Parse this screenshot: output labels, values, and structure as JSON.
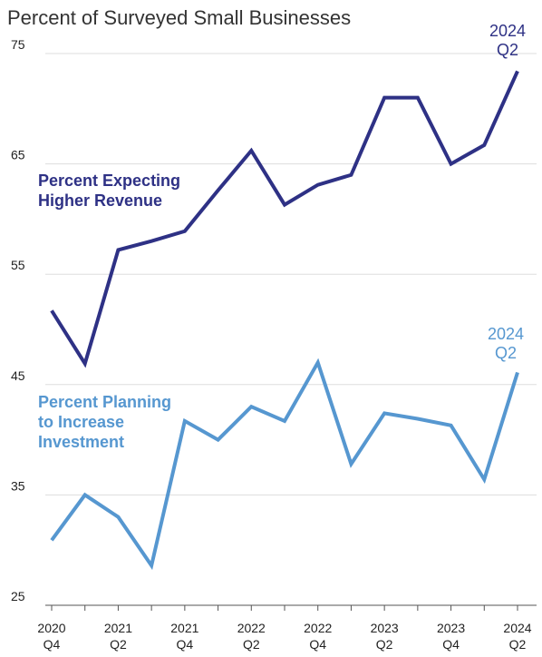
{
  "chart_data": {
    "type": "line",
    "title": "Percent of Surveyed Small Businesses",
    "categories": [
      "2020\nQ4",
      null,
      "2021\nQ2",
      null,
      "2021\nQ4",
      null,
      "2022\nQ2",
      null,
      "2022\nQ4",
      null,
      "2023\nQ2",
      null,
      "2023\nQ4",
      null,
      "2024\nQ2"
    ],
    "series": [
      {
        "name": "Percent Expecting\nHigher Revenue",
        "color": "#2e3185",
        "end_label": "2024\nQ2",
        "values": [
          51.7,
          46.9,
          57.2,
          58.0,
          58.9,
          62.6,
          66.2,
          61.3,
          63.1,
          64.0,
          71.0,
          71.0,
          65.0,
          66.7,
          73.4
        ]
      },
      {
        "name": "Percent Planning\nto Increase\nInvestment",
        "color": "#5697d0",
        "end_label": "2024\nQ2",
        "values": [
          30.9,
          35.0,
          33.0,
          28.6,
          41.7,
          40.0,
          43.0,
          41.7,
          47.0,
          37.8,
          42.4,
          41.9,
          41.3,
          36.4,
          46.1
        ]
      }
    ],
    "ylim": [
      25,
      75
    ],
    "yticks": [
      25,
      35,
      45,
      55,
      65,
      75
    ],
    "grid": true
  }
}
